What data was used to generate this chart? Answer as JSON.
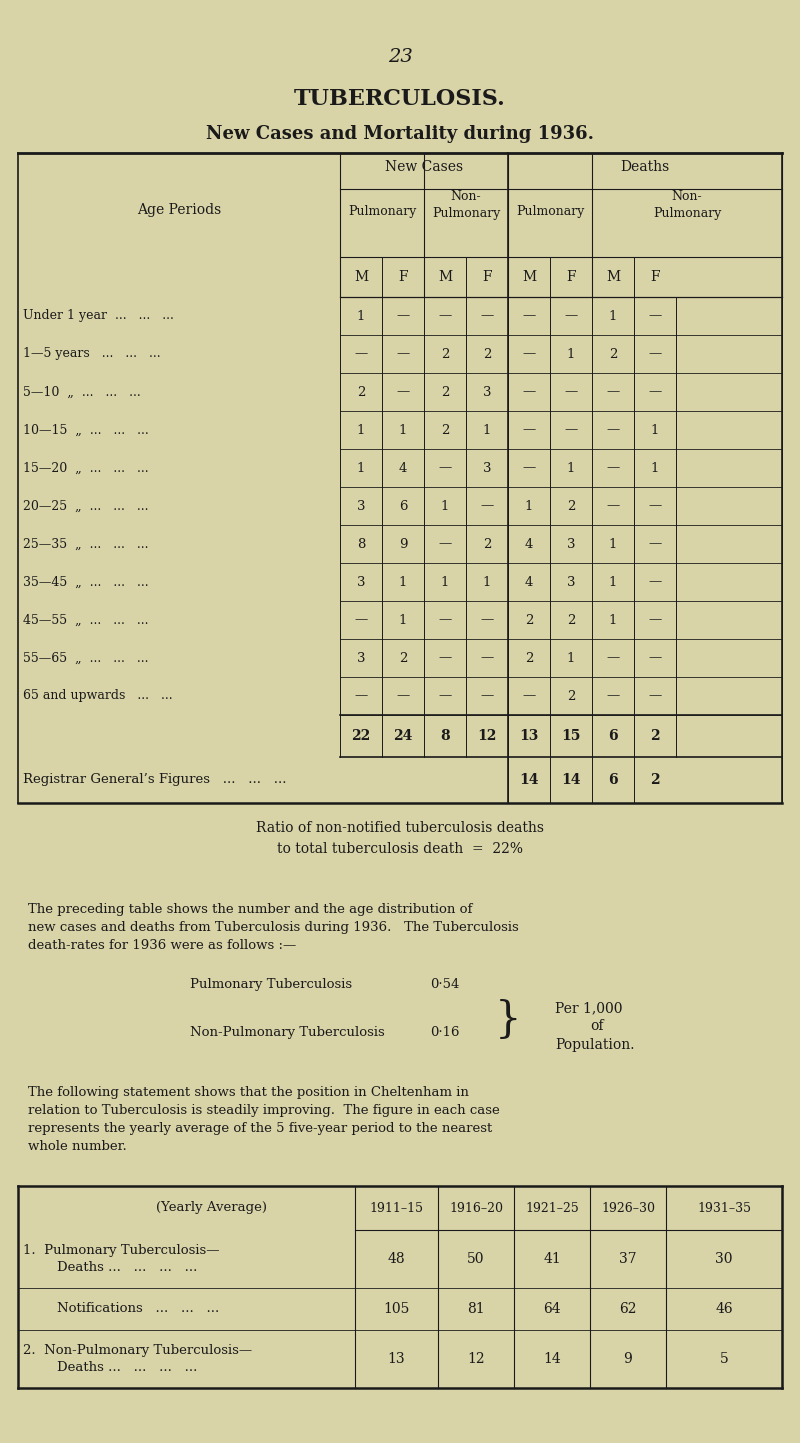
{
  "bg_color": "#d9d4a8",
  "page_number": "23",
  "title": "TUBERCULOSIS.",
  "subtitle": "New Cases and Mortality during 1936.",
  "table1_header_groups": [
    "New Cases",
    "Deaths"
  ],
  "table1_header_sub": [
    "Pulmonary",
    "Non-\nPulmonary",
    "Pulmonary",
    "Non-\nPulmonary"
  ],
  "table1_header_mf": [
    "M",
    "F",
    "M",
    "F",
    "M",
    "F",
    "M",
    "F"
  ],
  "table1_rows": [
    [
      "Under 1 year  ...   ...   ...",
      "1",
      "—",
      "—",
      "—",
      "—",
      "—",
      "1",
      "—"
    ],
    [
      "1—5 years   ...   ...   ...",
      "—",
      "—",
      "2",
      "2",
      "—",
      "1",
      "2",
      "—"
    ],
    [
      "5—10  „  ...   ...   ...",
      "2",
      "—",
      "2",
      "3",
      "—",
      "—",
      "—",
      "—"
    ],
    [
      "10—15  „  ...   ...   ...",
      "1",
      "1",
      "2",
      "1",
      "—",
      "—",
      "—",
      "1"
    ],
    [
      "15—20  „  ...   ...   ...",
      "1",
      "4",
      "—",
      "3",
      "—",
      "1",
      "—",
      "1"
    ],
    [
      "20—25  „  ...   ...   ...",
      "3",
      "6",
      "1",
      "—",
      "1",
      "2",
      "—",
      "—"
    ],
    [
      "25—35  „  ...   ...   ...",
      "8",
      "9",
      "—",
      "2",
      "4",
      "3",
      "1",
      "—"
    ],
    [
      "35—45  „  ...   ...   ...",
      "3",
      "1",
      "1",
      "1",
      "4",
      "3",
      "1",
      "—"
    ],
    [
      "45—55  „  ...   ...   ...",
      "—",
      "1",
      "—",
      "—",
      "2",
      "2",
      "1",
      "—"
    ],
    [
      "55—65  „  ...   ...   ...",
      "3",
      "2",
      "—",
      "—",
      "2",
      "1",
      "—",
      "—"
    ],
    [
      "65 and upwards   ...   ...",
      "—",
      "—",
      "—",
      "—",
      "—",
      "2",
      "—",
      "—"
    ]
  ],
  "table1_totals": [
    "22",
    "24",
    "8",
    "12",
    "13",
    "15",
    "6",
    "2"
  ],
  "table1_registrar": [
    "14",
    "14",
    "6",
    "2"
  ],
  "ratio_text": "Ratio of non-notified tuberculosis deaths\nto total tuberculosis death  =  22%",
  "para1": "The preceding table shows the number and the age distribution of\nnew cases and deaths from Tuberculosis during 1936.   The Tuberculosis\ndeath-rates for 1936 were as follows :—",
  "rates_pul_label": "Pulmonary Tuberculosis",
  "rates_pul_value": "0·54",
  "rates_nonpul_label": "Non-Pulmonary Tuberculosis",
  "rates_nonpul_value": "0·16",
  "rates_per": "Per 1,000",
  "rates_of": "of",
  "rates_pop": "Population.",
  "para2": "The following statement shows that the position in Cheltenham in\nrelation to Tuberculosis is steadily improving.  The figure in each case\nrepresents the yearly average of the 5 five-year period to the nearest\nwhole number.",
  "table2_col_header": "(Yearly Average)",
  "table2_cols": [
    "1911–15",
    "1916–20",
    "1921–25",
    "1926–30",
    "1931–35"
  ],
  "table2_rows": [
    [
      "1.  Pulmonary Tuberculosis—\n        Deaths ...   ...   ...   ...",
      "48",
      "50",
      "41",
      "37",
      "30"
    ],
    [
      "        Notifications   ...   ...   ...",
      "105",
      "81",
      "64",
      "62",
      "46"
    ],
    [
      "2.  Non-Pulmonary Tuberculosis—\n        Deaths ...   ...   ...   ...",
      "13",
      "12",
      "14",
      "9",
      "5"
    ]
  ]
}
